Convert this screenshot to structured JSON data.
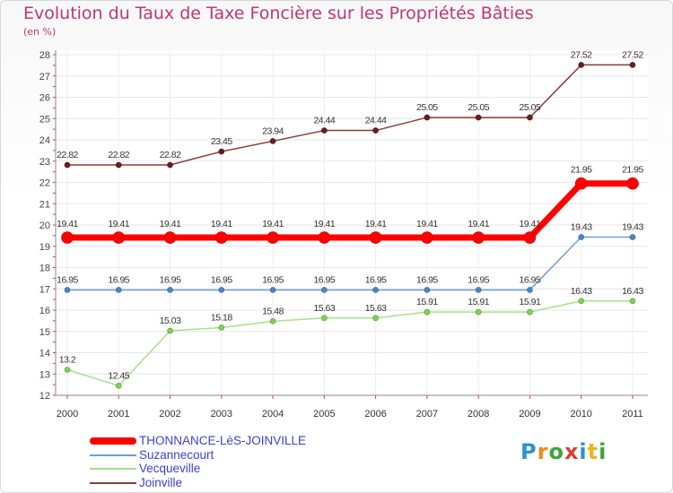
{
  "chart_data": {
    "type": "line",
    "title": "Evolution du Taux de Taxe Foncière sur les Propriétés Bâties",
    "subtitle": "(en %)",
    "x": [
      "2000",
      "2001",
      "2002",
      "2003",
      "2004",
      "2005",
      "2006",
      "2007",
      "2008",
      "2009",
      "2010",
      "2011"
    ],
    "ylim": [
      12,
      28
    ],
    "yticks": [
      12,
      13,
      14,
      15,
      16,
      17,
      18,
      19,
      20,
      21,
      22,
      23,
      24,
      25,
      26,
      27,
      28
    ],
    "grid": true,
    "legend_position": "bottom-left",
    "series": [
      {
        "name": "THONNANCE-LèS-JOINVILLE",
        "color": "#ff0000",
        "values": [
          19.41,
          19.41,
          19.41,
          19.41,
          19.41,
          19.41,
          19.41,
          19.41,
          19.41,
          19.41,
          21.95,
          21.95
        ],
        "labels": [
          "19.41",
          "19.41",
          "19.41",
          "19.41",
          "19.41",
          "19.41",
          "19.41",
          "19.41",
          "19.41",
          "19.41",
          "21.95",
          "21.95"
        ]
      },
      {
        "name": "Suzannecourt",
        "color": "#6e9fd4",
        "values": [
          16.95,
          16.95,
          16.95,
          16.95,
          16.95,
          16.95,
          16.95,
          16.95,
          16.95,
          16.95,
          19.43,
          19.43
        ],
        "labels": [
          "16.95",
          "16.95",
          "16.95",
          "16.95",
          "16.95",
          "16.95",
          "16.95",
          "16.95",
          "16.95",
          "16.95",
          "19.43",
          "19.43"
        ]
      },
      {
        "name": "Vecqueville",
        "color": "#a8e08c",
        "values": [
          13.2,
          12.45,
          15.03,
          15.18,
          15.48,
          15.63,
          15.63,
          15.91,
          15.91,
          15.91,
          16.43,
          16.43
        ],
        "labels": [
          "13.2",
          "12.45",
          "15.03",
          "15.18",
          "15.48",
          "15.63",
          "15.63",
          "15.91",
          "15.91",
          "15.91",
          "16.43",
          "16.43"
        ]
      },
      {
        "name": "Joinville",
        "color": "#8b3a3a",
        "values": [
          22.82,
          22.82,
          22.82,
          23.45,
          23.94,
          24.44,
          24.44,
          25.05,
          25.05,
          25.05,
          27.52,
          27.52
        ],
        "labels": [
          "22.82",
          "22.82",
          "22.82",
          "23.45",
          "23.94",
          "24.44",
          "24.44",
          "25.05",
          "25.05",
          "25.05",
          "27.52",
          "27.52"
        ]
      }
    ]
  },
  "legend_order": [
    0,
    1,
    2,
    3
  ],
  "logo": {
    "letters": [
      "P",
      "r",
      "o",
      "x",
      "i",
      "t",
      "i"
    ],
    "colors": [
      "#2f8fd6",
      "#f08a1c",
      "#3aa63a",
      "#e23a2c",
      "#2f8fd6",
      "#f0b51c",
      "#3aa63a"
    ]
  }
}
